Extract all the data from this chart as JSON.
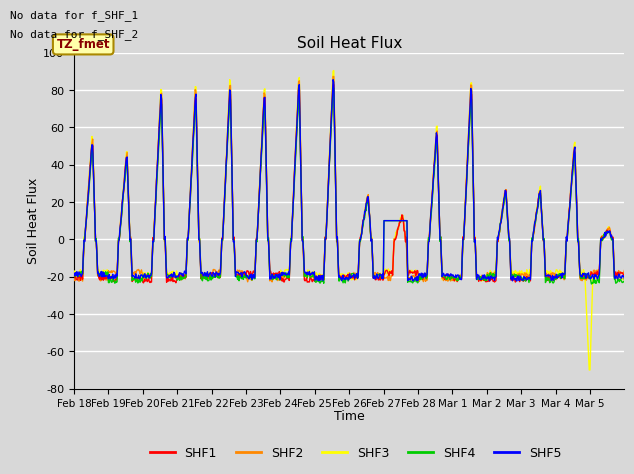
{
  "title": "Soil Heat Flux",
  "xlabel": "Time",
  "ylabel": "Soil Heat Flux",
  "ylim": [
    -80,
    100
  ],
  "annotations": [
    "No data for f_SHF_1",
    "No data for f_SHF_2"
  ],
  "box_label": "TZ_fmet",
  "box_facecolor": "#ffffaa",
  "box_edgecolor": "#aa8800",
  "box_textcolor": "#880000",
  "legend_entries": [
    "SHF1",
    "SHF2",
    "SHF3",
    "SHF4",
    "SHF5"
  ],
  "line_colors": [
    "#ff0000",
    "#ff8800",
    "#ffff00",
    "#00cc00",
    "#0000ff"
  ],
  "line_zorders": [
    5,
    4,
    3,
    6,
    7
  ],
  "background_color": "#d8d8d8",
  "yticks": [
    -80,
    -60,
    -40,
    -20,
    0,
    20,
    40,
    60,
    80,
    100
  ],
  "xtick_labels": [
    "Feb 18",
    "Feb 19",
    "Feb 20",
    "Feb 21",
    "Feb 22",
    "Feb 23",
    "Feb 24",
    "Feb 25",
    "Feb 26",
    "Feb 27",
    "Feb 28",
    "Mar 1",
    "Mar 2",
    "Mar 3",
    "Mar 4",
    "Mar 5"
  ],
  "n_days": 16
}
